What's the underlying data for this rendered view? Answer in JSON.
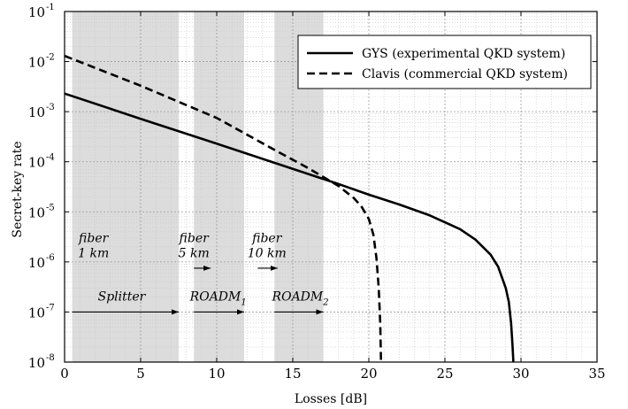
{
  "chart_data": {
    "type": "line",
    "xlabel": "Losses [dB]",
    "ylabel": "Secret-key rate",
    "xlim": [
      0,
      35
    ],
    "ylim": [
      1e-08,
      0.1
    ],
    "yscale": "log",
    "grid": true,
    "legend_position": "top-right",
    "x_ticks": [
      0,
      5,
      10,
      15,
      20,
      25,
      30,
      35
    ],
    "y_ticks": [
      {
        "value": 1e-08,
        "base": "10",
        "exp": "-8"
      },
      {
        "value": 1e-07,
        "base": "10",
        "exp": "-7"
      },
      {
        "value": 1e-06,
        "base": "10",
        "exp": "-6"
      },
      {
        "value": 1e-05,
        "base": "10",
        "exp": "-5"
      },
      {
        "value": 0.0001,
        "base": "10",
        "exp": "-4"
      },
      {
        "value": 0.001,
        "base": "10",
        "exp": "-3"
      },
      {
        "value": 0.01,
        "base": "10",
        "exp": "-2"
      },
      {
        "value": 0.1,
        "base": "10",
        "exp": "-1"
      }
    ],
    "shaded_regions": [
      {
        "x0": 0.5,
        "x1": 7.5
      },
      {
        "x0": 8.5,
        "x1": 11.8
      },
      {
        "x0": 13.8,
        "x1": 17.0
      }
    ],
    "series": [
      {
        "name": "GYS (experimental QKD system)",
        "style": "solid",
        "points": [
          [
            0,
            0.0023
          ],
          [
            5,
            0.00072
          ],
          [
            10,
            0.00023
          ],
          [
            15,
            7.2e-05
          ],
          [
            18,
            3.6e-05
          ],
          [
            20,
            2.2e-05
          ],
          [
            22,
            1.4e-05
          ],
          [
            24,
            8.5e-06
          ],
          [
            26,
            4.5e-06
          ],
          [
            27,
            2.8e-06
          ],
          [
            28,
            1.4e-06
          ],
          [
            28.5,
            8e-07
          ],
          [
            29,
            3e-07
          ],
          [
            29.2,
            1.6e-07
          ],
          [
            29.35,
            6e-08
          ],
          [
            29.45,
            2e-08
          ],
          [
            29.5,
            1e-08
          ]
        ]
      },
      {
        "name": "Clavis (commercial QKD system)",
        "style": "dashed",
        "points": [
          [
            0,
            0.013
          ],
          [
            5,
            0.0033
          ],
          [
            10,
            0.00075
          ],
          [
            14,
            0.00016
          ],
          [
            16,
            7.5e-05
          ],
          [
            18,
            3.3e-05
          ],
          [
            19,
            1.9e-05
          ],
          [
            19.5,
            1.3e-05
          ],
          [
            20,
            7.2e-06
          ],
          [
            20.3,
            3.5e-06
          ],
          [
            20.5,
            1.2e-06
          ],
          [
            20.65,
            3e-07
          ],
          [
            20.75,
            6e-08
          ],
          [
            20.8,
            1e-08
          ]
        ]
      }
    ],
    "annotations": [
      {
        "id": "fiber-1",
        "lines": [
          "fiber",
          "1 km"
        ],
        "x": 1.9,
        "y_top": 2.5e-06,
        "arrow": null
      },
      {
        "id": "fiber-5",
        "lines": [
          "fiber",
          "5 km"
        ],
        "x": 8.5,
        "y_top": 2.5e-06,
        "arrow": [
          8.5,
          9.6,
          7.5e-07
        ]
      },
      {
        "id": "fiber-10",
        "lines": [
          "fiber",
          "10 km"
        ],
        "x": 13.3,
        "y_top": 2.5e-06,
        "arrow": [
          12.7,
          14.0,
          7.5e-07
        ]
      }
    ],
    "component_labels": [
      {
        "id": "splitter",
        "text": "Splitter",
        "sub": "",
        "x": 3.75,
        "y": 1.7e-07,
        "arrow": [
          0.5,
          7.5,
          1e-07
        ]
      },
      {
        "id": "roadm1",
        "text": "ROADM",
        "sub": "1",
        "x": 10.1,
        "y": 1.7e-07,
        "arrow": [
          8.5,
          11.8,
          1e-07
        ]
      },
      {
        "id": "roadm2",
        "text": "ROADM",
        "sub": "2",
        "x": 15.5,
        "y": 1.7e-07,
        "arrow": [
          13.8,
          17.0,
          1e-07
        ]
      }
    ]
  }
}
